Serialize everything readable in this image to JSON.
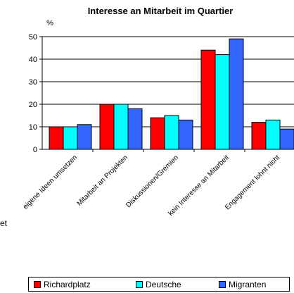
{
  "chart_data": {
    "type": "bar",
    "title": "Interesse an Mitarbeit im Quartier",
    "ylabel": "%",
    "xlabel": "",
    "ylim": [
      0,
      50
    ],
    "yticks": [
      0,
      10,
      20,
      30,
      40,
      50
    ],
    "grid": true,
    "legend_position": "bottom",
    "categories": [
      "eigene Ideen umsetzen",
      "Mitarbeit an Projekten",
      "Diskussionen/Gremien",
      "kein Interesse an Mitarbeit",
      "Engagement lohnt nicht"
    ],
    "series": [
      {
        "name": "Richardplatz",
        "color": "#ff0000",
        "values": [
          10,
          20,
          14,
          44,
          12
        ]
      },
      {
        "name": "Deutsche",
        "color": "#00ffff",
        "values": [
          10,
          20,
          15,
          42,
          13
        ]
      },
      {
        "name": "Migranten",
        "color": "#3366ff",
        "values": [
          11,
          18,
          13,
          49,
          9
        ]
      }
    ]
  },
  "edge_fragment": "et"
}
